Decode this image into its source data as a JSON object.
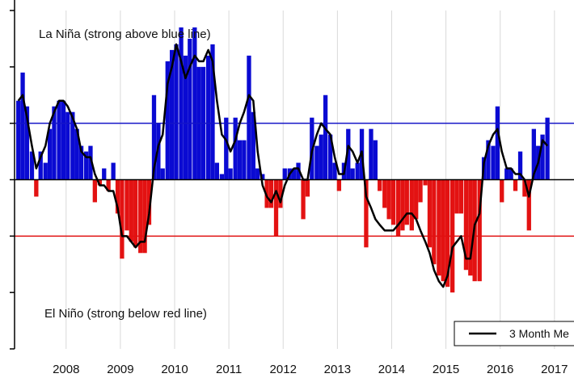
{
  "chart_data": {
    "type": "bar",
    "annotations": {
      "la_nina": "La Niña (strong above blue line)",
      "el_nino": "El Niño (strong below red line)"
    },
    "legend": {
      "label": "3 Month Me",
      "placement": "bottom-right"
    },
    "thresholds": [
      {
        "value": 1,
        "color": "#1414c8"
      },
      {
        "value": -1,
        "color": "#e01010"
      }
    ],
    "ylim": [
      -3,
      3
    ],
    "xlim": [
      2007.55,
      2017.86
    ],
    "x_ticks": [
      "2008",
      "2009",
      "2010",
      "2011",
      "2012",
      "2013",
      "2014",
      "2015",
      "2016",
      "2017"
    ],
    "grid": "vertical, light grey",
    "colors": {
      "positive": "#0a0ad2",
      "negative": "#e31212",
      "line": "#000000"
    },
    "months": [
      [
        2007.62,
        1.4
      ],
      [
        2007.7,
        1.9
      ],
      [
        2007.78,
        1.3
      ],
      [
        2007.87,
        0.5
      ],
      [
        2007.95,
        -0.3
      ],
      [
        2008.03,
        0.5
      ],
      [
        2008.12,
        0.3
      ],
      [
        2008.2,
        0.9
      ],
      [
        2008.28,
        1.3
      ],
      [
        2008.37,
        1.4
      ],
      [
        2008.45,
        1.4
      ],
      [
        2008.53,
        1.2
      ],
      [
        2008.62,
        1.2
      ],
      [
        2008.7,
        0.9
      ],
      [
        2008.78,
        0.6
      ],
      [
        2008.87,
        0.5
      ],
      [
        2008.95,
        0.6
      ],
      [
        2009.03,
        -0.4
      ],
      [
        2009.12,
        -0.1
      ],
      [
        2009.2,
        0.2
      ],
      [
        2009.28,
        -0.2
      ],
      [
        2009.37,
        0.3
      ],
      [
        2009.45,
        -0.6
      ],
      [
        2009.53,
        -1.4
      ],
      [
        2009.62,
        -0.9
      ],
      [
        2009.7,
        -1.1
      ],
      [
        2009.78,
        -1.2
      ],
      [
        2009.87,
        -1.3
      ],
      [
        2009.95,
        -1.3
      ],
      [
        2010.03,
        -0.8
      ],
      [
        2010.12,
        1.5
      ],
      [
        2010.2,
        1.0
      ],
      [
        2010.28,
        0.2
      ],
      [
        2010.37,
        2.1
      ],
      [
        2010.45,
        2.3
      ],
      [
        2010.53,
        2.4
      ],
      [
        2010.62,
        2.7
      ],
      [
        2010.7,
        2.2
      ],
      [
        2010.78,
        2.5
      ],
      [
        2010.87,
        2.7
      ],
      [
        2010.95,
        2.0
      ],
      [
        2011.03,
        2.0
      ],
      [
        2011.12,
        2.2
      ],
      [
        2011.2,
        2.4
      ],
      [
        2011.28,
        0.3
      ],
      [
        2011.37,
        0.1
      ],
      [
        2011.45,
        1.1
      ],
      [
        2011.53,
        0.2
      ],
      [
        2011.62,
        1.1
      ],
      [
        2011.7,
        0.7
      ],
      [
        2011.78,
        0.7
      ],
      [
        2011.87,
        2.2
      ],
      [
        2011.95,
        1.2
      ],
      [
        2012.03,
        0.2
      ],
      [
        2012.12,
        0.1
      ],
      [
        2012.2,
        -0.5
      ],
      [
        2012.28,
        -0.5
      ],
      [
        2012.37,
        -1.0
      ],
      [
        2012.45,
        -0.5
      ],
      [
        2012.53,
        0.2
      ],
      [
        2012.62,
        0.2
      ],
      [
        2012.7,
        0.2
      ],
      [
        2012.78,
        0.3
      ],
      [
        2012.87,
        -0.7
      ],
      [
        2012.95,
        -0.3
      ],
      [
        2013.03,
        1.1
      ],
      [
        2013.12,
        0.6
      ],
      [
        2013.2,
        0.8
      ],
      [
        2013.28,
        1.5
      ],
      [
        2013.37,
        0.8
      ],
      [
        2013.45,
        0.3
      ],
      [
        2013.53,
        -0.2
      ],
      [
        2013.62,
        0.3
      ],
      [
        2013.7,
        0.9
      ],
      [
        2013.78,
        0.2
      ],
      [
        2013.87,
        0.3
      ],
      [
        2013.95,
        0.9
      ],
      [
        2014.03,
        -1.2
      ],
      [
        2014.12,
        0.9
      ],
      [
        2014.2,
        0.7
      ],
      [
        2014.28,
        -0.2
      ],
      [
        2014.37,
        -0.5
      ],
      [
        2014.45,
        -0.7
      ],
      [
        2014.53,
        -0.8
      ],
      [
        2014.62,
        -1.0
      ],
      [
        2014.7,
        -0.9
      ],
      [
        2014.78,
        -0.8
      ],
      [
        2014.87,
        -0.9
      ],
      [
        2014.95,
        -0.7
      ],
      [
        2015.03,
        -0.4
      ],
      [
        2015.12,
        -0.1
      ],
      [
        2015.2,
        -1.2
      ],
      [
        2015.28,
        -1.5
      ],
      [
        2015.37,
        -1.7
      ],
      [
        2015.45,
        -1.8
      ],
      [
        2015.53,
        -1.9
      ],
      [
        2015.62,
        -2.0
      ],
      [
        2015.7,
        -0.6
      ],
      [
        2015.78,
        -0.6
      ],
      [
        2015.87,
        -1.6
      ],
      [
        2015.95,
        -1.7
      ],
      [
        2016.03,
        -1.8
      ],
      [
        2016.12,
        -1.8
      ],
      [
        2016.2,
        0.4
      ],
      [
        2016.28,
        0.7
      ],
      [
        2016.37,
        0.6
      ],
      [
        2016.45,
        1.3
      ],
      [
        2016.53,
        -0.4
      ],
      [
        2016.62,
        0.2
      ],
      [
        2016.7,
        0.2
      ],
      [
        2016.78,
        -0.2
      ],
      [
        2016.87,
        0.5
      ],
      [
        2016.95,
        -0.3
      ],
      [
        2017.03,
        -0.9
      ],
      [
        2017.12,
        0.9
      ],
      [
        2017.2,
        0.6
      ],
      [
        2017.28,
        0.8
      ],
      [
        2017.37,
        1.1
      ]
    ],
    "series": [
      {
        "type": "line",
        "x": [
          2007.62,
          2007.7,
          2007.78,
          2007.87,
          2007.95,
          2008.03,
          2008.12,
          2008.2,
          2008.28,
          2008.37,
          2008.45,
          2008.53,
          2008.62,
          2008.7,
          2008.78,
          2008.87,
          2008.95,
          2009.03,
          2009.12,
          2009.2,
          2009.28,
          2009.37,
          2009.45,
          2009.53,
          2009.62,
          2009.7,
          2009.78,
          2009.87,
          2009.95,
          2010.03,
          2010.12,
          2010.2,
          2010.28,
          2010.37,
          2010.45,
          2010.53,
          2010.62,
          2010.7,
          2010.78,
          2010.87,
          2010.95,
          2011.03,
          2011.12,
          2011.2,
          2011.28,
          2011.37,
          2011.45,
          2011.53,
          2011.62,
          2011.7,
          2011.78,
          2011.87,
          2011.95,
          2012.03,
          2012.12,
          2012.2,
          2012.28,
          2012.37,
          2012.45,
          2012.53,
          2012.62,
          2012.7,
          2012.78,
          2012.87,
          2012.95,
          2013.03,
          2013.12,
          2013.2,
          2013.28,
          2013.37,
          2013.45,
          2013.53,
          2013.62,
          2013.7,
          2013.78,
          2013.87,
          2013.95,
          2014.03,
          2014.12,
          2014.2,
          2014.28,
          2014.37,
          2014.45,
          2014.53,
          2014.62,
          2014.7,
          2014.78,
          2014.87,
          2014.95,
          2015.03,
          2015.12,
          2015.2,
          2015.28,
          2015.37,
          2015.45,
          2015.53,
          2015.62,
          2015.7,
          2015.78,
          2015.87,
          2015.95,
          2016.03,
          2016.12,
          2016.2,
          2016.28,
          2016.37,
          2016.45,
          2016.53,
          2016.62,
          2016.7,
          2016.78,
          2016.87,
          2016.95,
          2017.03,
          2017.12,
          2017.2,
          2017.28,
          2017.37
        ],
        "y": [
          1.4,
          1.5,
          1.1,
          0.6,
          0.2,
          0.4,
          0.6,
          1.0,
          1.2,
          1.4,
          1.4,
          1.3,
          1.1,
          0.9,
          0.5,
          0.4,
          0.4,
          0.1,
          -0.1,
          -0.1,
          -0.2,
          -0.2,
          -0.5,
          -1.0,
          -1.0,
          -1.1,
          -1.2,
          -1.1,
          -1.1,
          -0.6,
          0.2,
          0.6,
          0.8,
          1.7,
          2.0,
          2.4,
          2.1,
          1.8,
          2.0,
          2.2,
          2.1,
          2.1,
          2.3,
          2.1,
          1.4,
          0.8,
          0.7,
          0.5,
          0.7,
          1.0,
          1.2,
          1.5,
          1.4,
          0.5,
          -0.1,
          -0.3,
          -0.4,
          -0.2,
          -0.4,
          -0.1,
          0.1,
          0.2,
          0.2,
          0.0,
          0.0,
          0.5,
          0.8,
          1.0,
          0.9,
          0.8,
          0.4,
          0.1,
          0.1,
          0.6,
          0.5,
          0.3,
          0.5,
          -0.3,
          -0.5,
          -0.7,
          -0.8,
          -0.9,
          -0.9,
          -0.9,
          -0.8,
          -0.7,
          -0.6,
          -0.6,
          -0.7,
          -0.9,
          -1.1,
          -1.3,
          -1.6,
          -1.8,
          -1.9,
          -1.7,
          -1.2,
          -1.1,
          -1.0,
          -1.4,
          -1.4,
          -0.8,
          -0.6,
          0.3,
          0.6,
          0.8,
          0.9,
          0.5,
          0.2,
          0.2,
          0.1,
          0.1,
          0.0,
          -0.3,
          0.1,
          0.3,
          0.7,
          0.6
        ]
      }
    ]
  }
}
